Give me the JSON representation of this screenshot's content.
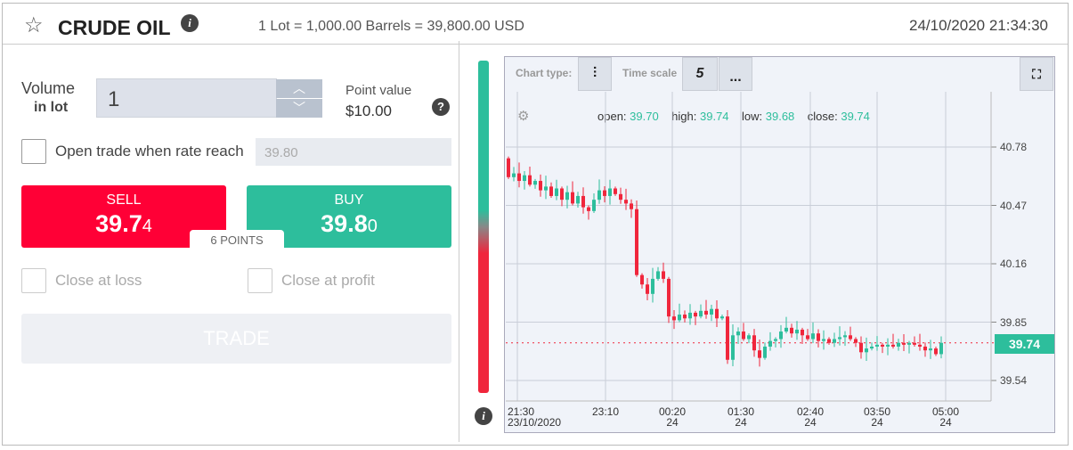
{
  "header": {
    "title": "CRUDE OIL",
    "lot_info": "1 Lot = 1,000.00 Barrels = 39,800.00 USD",
    "datetime": "24/10/2020 21:34:30",
    "info": "i"
  },
  "volume": {
    "label": "Volume",
    "sublabel": "in lot",
    "value": "1",
    "point_label": "Point value",
    "point_value": "$10.00",
    "help": "?"
  },
  "open_trade": {
    "label": "Open trade when rate reach",
    "value": "39.80"
  },
  "sell": {
    "label": "SELL",
    "price": "39.7",
    "price_small": "4"
  },
  "buy": {
    "label": "BUY",
    "price": "39.8",
    "price_small": "0"
  },
  "spread": "6 POINTS",
  "close_loss": "Close at loss",
  "close_profit": "Close at profit",
  "trade_label": "TRADE",
  "toolbar": {
    "chart_type": "Chart type:",
    "time_scale": "Time scale",
    "scale_value": "5",
    "more": "..."
  },
  "ohlc": {
    "open_label": "open:",
    "open": "39.70",
    "high_label": "high:",
    "high": "39.74",
    "low_label": "low:",
    "low": "39.68",
    "close_label": "close:",
    "close": "39.74"
  },
  "current_price": "39.74",
  "colors": {
    "up": "#2dbe9c",
    "down": "#f0263c"
  },
  "chart_data": {
    "type": "candlestick",
    "y_ticks": [
      "40.78",
      "40.47",
      "40.16",
      "39.85",
      "39.54"
    ],
    "ylim": [
      39.5,
      40.82
    ],
    "x_ticks": [
      {
        "t": "21:30",
        "d": "23/10/2020"
      },
      {
        "t": "23:10",
        "d": ""
      },
      {
        "t": "00:20",
        "d": "24"
      },
      {
        "t": "01:30",
        "d": "24"
      },
      {
        "t": "02:40",
        "d": "24"
      },
      {
        "t": "03:50",
        "d": "24"
      },
      {
        "t": "05:00",
        "d": "24"
      }
    ],
    "first_open": 40.72,
    "closes": [
      40.62,
      40.64,
      40.6,
      40.63,
      40.58,
      40.6,
      40.55,
      40.57,
      40.52,
      40.56,
      40.5,
      40.54,
      40.48,
      40.52,
      40.46,
      40.44,
      40.5,
      40.55,
      40.52,
      40.56,
      40.53,
      40.5,
      40.48,
      40.45,
      40.1,
      40.05,
      40.0,
      40.08,
      40.12,
      40.08,
      39.88,
      39.86,
      39.89,
      39.87,
      39.9,
      39.88,
      39.91,
      39.89,
      39.92,
      39.87,
      39.88,
      39.65,
      39.78,
      39.8,
      39.76,
      39.78,
      39.7,
      39.66,
      39.72,
      39.75,
      39.76,
      39.8,
      39.82,
      39.79,
      39.81,
      39.78,
      39.76,
      39.79,
      39.75,
      39.76,
      39.74,
      39.76,
      39.77,
      39.78,
      39.76,
      39.74,
      39.69,
      39.71,
      39.72,
      39.73,
      39.72,
      39.73,
      39.72,
      39.74,
      39.73,
      39.74,
      39.73,
      39.72,
      39.7,
      39.71,
      39.68,
      39.74
    ]
  }
}
